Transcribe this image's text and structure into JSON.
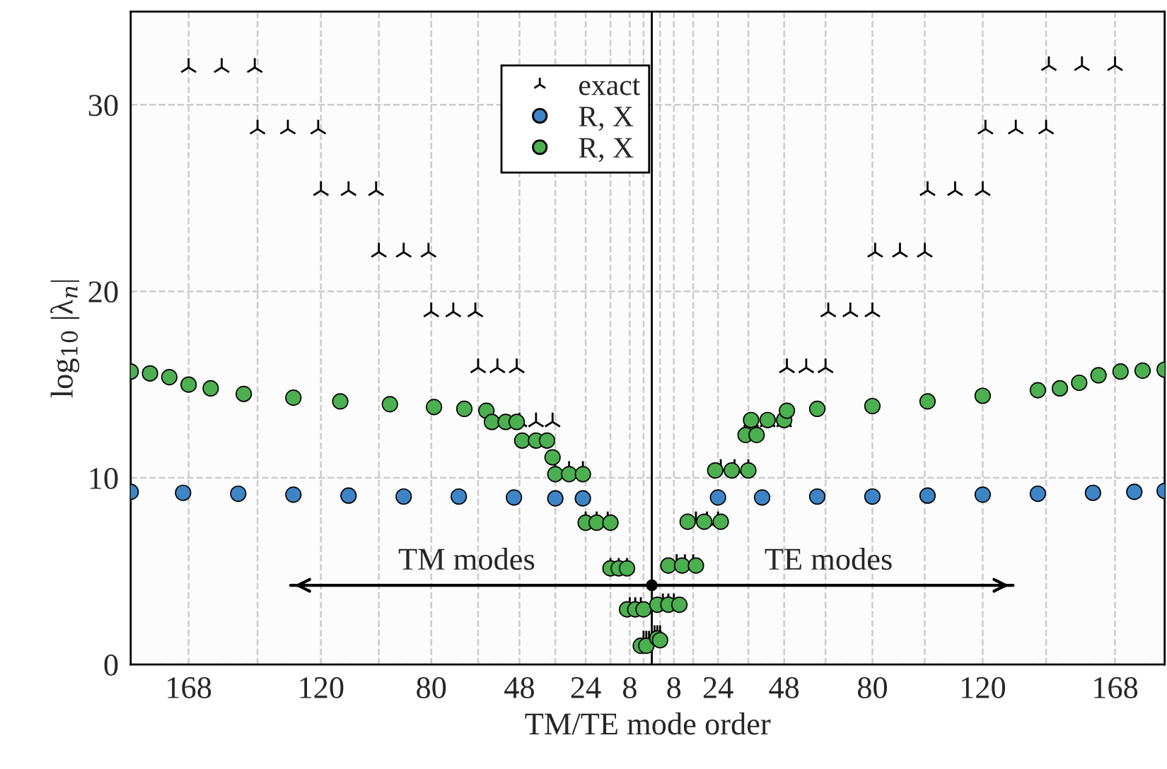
{
  "chart_data": {
    "type": "scatter",
    "xlabel": "TM/TE mode order",
    "ylabel": "log$_{10}$ |λ$_{n}$|",
    "xlim": [
      -189,
      186
    ],
    "ylim": [
      0,
      35
    ],
    "xticks": [
      {
        "value": -168,
        "label": "168"
      },
      {
        "value": -143,
        "label": null
      },
      {
        "value": -120,
        "label": "120"
      },
      {
        "value": -99,
        "label": null
      },
      {
        "value": -80,
        "label": "80"
      },
      {
        "value": -63,
        "label": null
      },
      {
        "value": -48,
        "label": "48"
      },
      {
        "value": -35,
        "label": null
      },
      {
        "value": -24,
        "label": "24"
      },
      {
        "value": -15,
        "label": null
      },
      {
        "value": -8,
        "label": "8"
      },
      {
        "value": -3,
        "label": null
      },
      {
        "value": 3,
        "label": null
      },
      {
        "value": 8,
        "label": "8"
      },
      {
        "value": 15,
        "label": null
      },
      {
        "value": 24,
        "label": "24"
      },
      {
        "value": 35,
        "label": null
      },
      {
        "value": 48,
        "label": "48"
      },
      {
        "value": 63,
        "label": null
      },
      {
        "value": 80,
        "label": "80"
      },
      {
        "value": 99,
        "label": null
      },
      {
        "value": 120,
        "label": "120"
      },
      {
        "value": 143,
        "label": null
      },
      {
        "value": 168,
        "label": "168"
      }
    ],
    "yticks": [
      0,
      10,
      20,
      30
    ],
    "grid": true,
    "legend": "top",
    "ref_lines": [
      {
        "axis": "x",
        "value": 0,
        "color": "#000000",
        "line_style": "solid"
      }
    ],
    "annotations": [
      "TM modes",
      "TE modes"
    ],
    "series": [
      {
        "type": "line",
        "color": "#000000",
        "marker": "none",
        "x": [
          -131,
          0,
          131
        ],
        "values": [
          4.24,
          4.24,
          4.24
        ]
      },
      {
        "name": "exact",
        "color": "#000000",
        "marker": "cross",
        "x": [
          -168,
          -156,
          -144,
          -143,
          -132,
          -121,
          -120,
          -110,
          -100,
          -99,
          -90,
          -81,
          -80,
          -72,
          -64,
          -63,
          -56,
          -49,
          -48,
          -42,
          -36,
          -35,
          -30,
          -25,
          -24,
          -20,
          -16,
          -15,
          -12,
          -9,
          -8,
          -6,
          -4,
          -3,
          -2,
          -1,
          1,
          2,
          3,
          4,
          6,
          8,
          9,
          12,
          15,
          16,
          20,
          24,
          25,
          30,
          35,
          36,
          42,
          48,
          49,
          56,
          63,
          64,
          72,
          80,
          81,
          90,
          99,
          100,
          110,
          120,
          121,
          132,
          143,
          144,
          156,
          168
        ],
        "values": [
          32.0,
          32.0,
          32.0,
          28.7,
          28.7,
          28.7,
          25.4,
          25.4,
          25.4,
          22.1,
          22.1,
          22.1,
          18.9,
          18.9,
          18.9,
          15.9,
          15.9,
          15.9,
          13.0,
          13.0,
          13.0,
          10.4,
          10.4,
          10.4,
          7.7,
          7.7,
          7.7,
          5.2,
          5.2,
          5.2,
          3.1,
          3.1,
          3.1,
          1.3,
          1.3,
          1.3,
          1.6,
          1.6,
          1.6,
          3.3,
          3.3,
          3.3,
          5.4,
          5.4,
          5.4,
          7.7,
          7.7,
          7.7,
          10.5,
          10.5,
          10.5,
          13.0,
          13.0,
          13.0,
          15.9,
          15.9,
          15.9,
          18.9,
          18.9,
          18.9,
          22.1,
          22.1,
          22.1,
          25.4,
          25.4,
          25.4,
          28.7,
          28.7,
          28.7,
          32.1,
          32.1,
          32.1
        ]
      },
      {
        "name": "R, X",
        "color": "#3d85c6",
        "marker": "circle",
        "x": [
          -189,
          -170,
          -150,
          -130,
          -110,
          -90,
          -70,
          -50,
          -35,
          -25,
          24,
          40,
          60,
          80,
          100,
          120,
          140,
          160,
          175,
          186
        ],
        "values": [
          9.25,
          9.2,
          9.15,
          9.1,
          9.05,
          9.0,
          9.0,
          8.95,
          8.9,
          8.9,
          8.95,
          8.95,
          9.0,
          9.0,
          9.05,
          9.1,
          9.15,
          9.2,
          9.25,
          9.3
        ]
      },
      {
        "name": "R, X",
        "color": "#4caf50",
        "marker": "circle",
        "x": [
          -189,
          -182,
          -175,
          -168,
          -160,
          -148,
          -130,
          -113,
          -95,
          -79,
          -68,
          -60,
          -58,
          -53,
          -49,
          -47,
          -42,
          -38,
          -36,
          -35,
          -30,
          -25,
          -24,
          -20,
          -15,
          -15,
          -12,
          -9,
          -9,
          -6,
          -3,
          -4,
          -2,
          2,
          3,
          2,
          6,
          10,
          6,
          11,
          16,
          13,
          19,
          25,
          23,
          29,
          35,
          34,
          38,
          36,
          42,
          48,
          49,
          60,
          80,
          100,
          120,
          140,
          148,
          155,
          162,
          170,
          178,
          186
        ],
        "values": [
          15.7,
          15.6,
          15.4,
          15.0,
          14.8,
          14.5,
          14.3,
          14.1,
          13.95,
          13.8,
          13.7,
          13.6,
          13.0,
          13.0,
          13.0,
          12.0,
          12.0,
          12.0,
          11.1,
          10.2,
          10.2,
          10.2,
          7.6,
          7.6,
          7.6,
          5.15,
          5.15,
          5.15,
          2.95,
          2.95,
          2.95,
          1.0,
          1.0,
          1.4,
          1.3,
          3.2,
          3.2,
          3.2,
          5.3,
          5.3,
          5.3,
          7.65,
          7.65,
          7.65,
          10.4,
          10.4,
          10.4,
          12.3,
          12.3,
          13.1,
          13.1,
          13.1,
          13.6,
          13.7,
          13.85,
          14.1,
          14.4,
          14.7,
          14.8,
          15.1,
          15.5,
          15.7,
          15.75,
          15.8
        ]
      }
    ]
  }
}
